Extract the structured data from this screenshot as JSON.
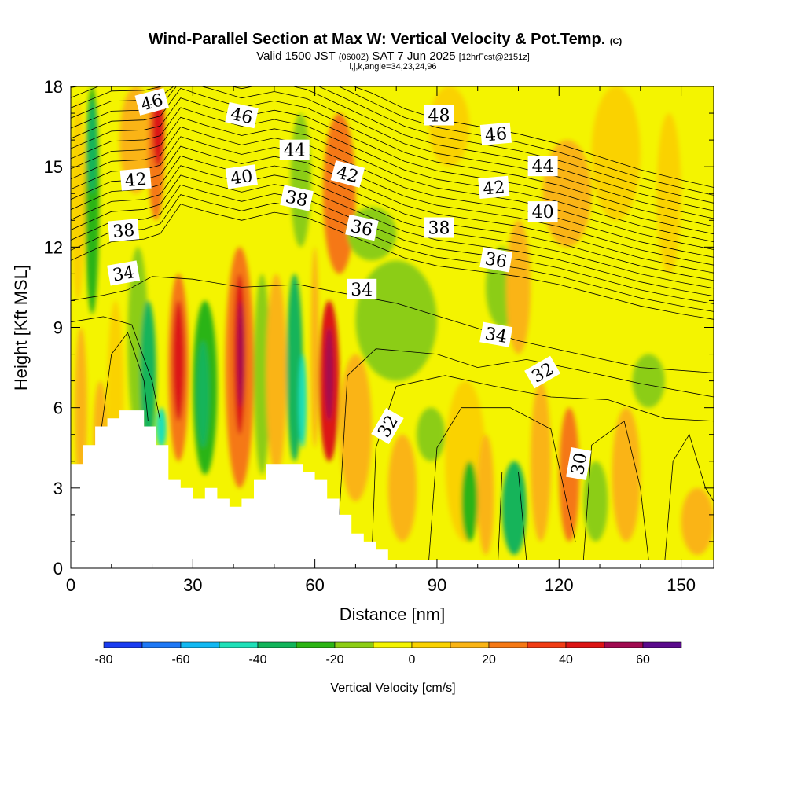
{
  "chart_data": {
    "type": "heatmap",
    "title": "Wind-Parallel Section at Max W: Vertical Velocity & Pot.Temp.",
    "title_mark": "(C)",
    "subtitle": {
      "prefix": "Valid 1500 JST",
      "utc": "(0600Z)",
      "date": "SAT 7 Jun 2025",
      "fcst": "[12hrFcst@2151z]"
    },
    "subtitle2": "i,j,k,angle=34,23,24,96",
    "xlabel": "Distance [nm]",
    "ylabel": "Height [Kft MSL]",
    "xlim": [
      0,
      158
    ],
    "ylim": [
      0,
      18
    ],
    "x_ticks": [
      0,
      30,
      60,
      90,
      120,
      150
    ],
    "y_ticks": [
      0,
      3,
      6,
      9,
      12,
      15,
      18
    ],
    "colorbar": {
      "title": "Vertical Velocity [cm/s]",
      "levels": [
        -80,
        -70,
        -60,
        -50,
        -40,
        -30,
        -20,
        -10,
        0,
        10,
        20,
        30,
        40,
        50,
        60,
        70
      ],
      "tick_labels": [
        -80,
        -60,
        -40,
        -20,
        0,
        20,
        40,
        60
      ],
      "colors": [
        "#1a3cf0",
        "#1e78f5",
        "#12b8f2",
        "#1ee0b8",
        "#12b45a",
        "#2cb414",
        "#8ccd14",
        "#f4f400",
        "#fad200",
        "#fab414",
        "#f57814",
        "#f03c14",
        "#dc1414",
        "#a00a50",
        "#5a0a8c"
      ]
    },
    "contour_labels": [
      {
        "text": "46",
        "x": 20,
        "y": 17.4,
        "rot": -15
      },
      {
        "text": "46",
        "x": 42,
        "y": 16.9,
        "rot": 12
      },
      {
        "text": "48",
        "x": 90.5,
        "y": 16.9,
        "rot": 0
      },
      {
        "text": "46",
        "x": 104.5,
        "y": 16.2,
        "rot": -5
      },
      {
        "text": "44",
        "x": 55,
        "y": 15.6,
        "rot": 0
      },
      {
        "text": "44",
        "x": 116,
        "y": 15.0,
        "rot": 0
      },
      {
        "text": "42",
        "x": 16,
        "y": 14.5,
        "rot": -5
      },
      {
        "text": "40",
        "x": 42,
        "y": 14.6,
        "rot": -8
      },
      {
        "text": "42",
        "x": 68,
        "y": 14.7,
        "rot": 15
      },
      {
        "text": "42",
        "x": 104,
        "y": 14.2,
        "rot": -5
      },
      {
        "text": "38",
        "x": 55.5,
        "y": 13.8,
        "rot": 12
      },
      {
        "text": "40",
        "x": 116,
        "y": 13.3,
        "rot": 0
      },
      {
        "text": "38",
        "x": 13,
        "y": 12.6,
        "rot": -5
      },
      {
        "text": "36",
        "x": 71.5,
        "y": 12.7,
        "rot": 12
      },
      {
        "text": "38",
        "x": 90.5,
        "y": 12.7,
        "rot": 0
      },
      {
        "text": "36",
        "x": 104.5,
        "y": 11.5,
        "rot": 10
      },
      {
        "text": "34",
        "x": 13,
        "y": 11.0,
        "rot": -10
      },
      {
        "text": "34",
        "x": 71.5,
        "y": 10.4,
        "rot": 0
      },
      {
        "text": "34",
        "x": 104.5,
        "y": 8.7,
        "rot": 10
      },
      {
        "text": "32",
        "x": 116,
        "y": 7.3,
        "rot": -30
      },
      {
        "text": "32",
        "x": 78,
        "y": 5.3,
        "rot": -60
      },
      {
        "text": "30",
        "x": 125,
        "y": 3.9,
        "rot": -80
      }
    ],
    "terrain_profile": {
      "x": [
        0,
        3,
        3,
        6,
        6,
        9,
        9,
        12,
        12,
        15,
        15,
        18,
        18,
        21,
        21,
        24,
        24,
        27,
        27,
        30,
        30,
        33,
        33,
        36,
        36,
        39,
        39,
        42,
        42,
        45,
        45,
        48,
        48,
        51,
        51,
        54,
        54,
        57,
        57,
        60,
        60,
        63,
        63,
        66,
        66,
        69,
        69,
        72,
        72,
        75,
        75,
        78,
        78,
        81,
        81,
        84,
        84,
        158
      ],
      "y": [
        3.9,
        3.9,
        4.6,
        4.6,
        5.3,
        5.3,
        5.6,
        5.6,
        5.9,
        5.9,
        5.9,
        5.9,
        5.3,
        5.3,
        4.6,
        4.6,
        3.3,
        3.3,
        3.0,
        3.0,
        2.6,
        2.6,
        3.0,
        3.0,
        2.6,
        2.6,
        2.3,
        2.3,
        2.6,
        2.6,
        3.3,
        3.3,
        3.9,
        3.9,
        3.9,
        3.9,
        3.9,
        3.9,
        3.6,
        3.6,
        3.3,
        3.3,
        2.6,
        2.6,
        2.0,
        2.0,
        1.3,
        1.3,
        1.0,
        1.0,
        0.7,
        0.7,
        0.3,
        0.3,
        0.3,
        0.3,
        0.3,
        0.3
      ]
    }
  }
}
